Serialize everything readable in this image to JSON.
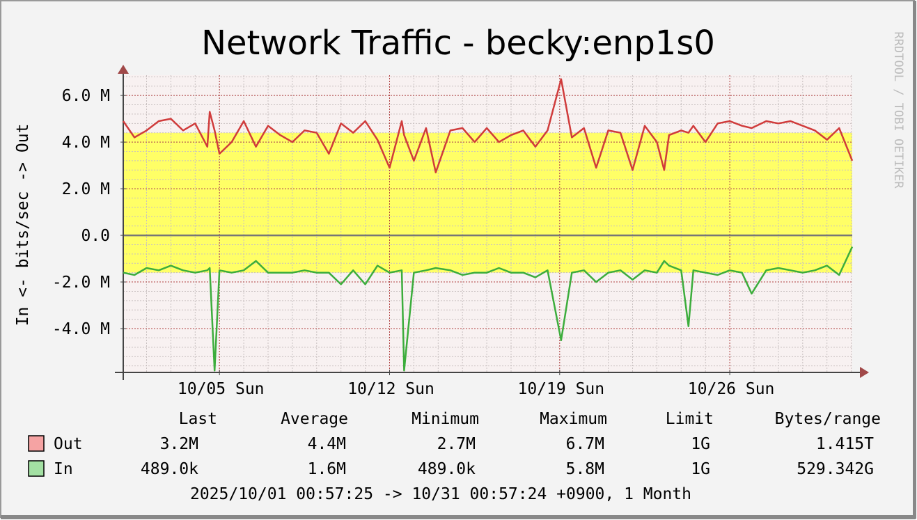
{
  "chart_data": {
    "type": "line",
    "title": "Network Traffic - becky:enp1s0",
    "y_label": "In <- bits/sec -> Out",
    "watermark": "RRDTOOL / TOBI OETIKER",
    "footer": "2025/10/01 00:57:25 -> 10/31 00:57:24 +0900, 1 Month",
    "x": [
      1.04,
      1.5,
      2.0,
      2.5,
      3.0,
      3.5,
      4.0,
      4.5,
      4.6,
      4.8,
      5.0,
      5.5,
      6.0,
      6.5,
      7.0,
      7.5,
      8.0,
      8.5,
      9.0,
      9.5,
      10.0,
      10.5,
      11.0,
      11.5,
      12.0,
      12.5,
      12.6,
      13.0,
      13.5,
      13.9,
      14.5,
      15.0,
      15.5,
      16.0,
      16.5,
      17.0,
      17.5,
      18.0,
      18.5,
      19.06,
      19.5,
      20.0,
      20.5,
      21.0,
      21.5,
      22.0,
      22.5,
      23.0,
      23.3,
      23.5,
      24.0,
      24.3,
      24.5,
      25.0,
      25.5,
      26.0,
      26.5,
      26.9,
      27.5,
      28.0,
      28.5,
      29.0,
      29.5,
      30.0,
      30.5,
      31.04
    ],
    "series": [
      {
        "name": "Out",
        "color": "#d03b3b",
        "legend_color": "#f5a3a3",
        "values": [
          4.9,
          4.2,
          4.5,
          4.9,
          5.0,
          4.5,
          4.8,
          3.8,
          5.3,
          4.5,
          3.5,
          4.0,
          4.9,
          3.8,
          4.7,
          4.3,
          4.0,
          4.5,
          4.4,
          3.5,
          4.8,
          4.4,
          4.9,
          4.1,
          2.9,
          4.9,
          4.3,
          3.2,
          4.6,
          2.7,
          4.5,
          4.6,
          4.0,
          4.6,
          4.0,
          4.3,
          4.5,
          3.8,
          4.5,
          6.7,
          4.2,
          4.6,
          2.9,
          4.5,
          4.4,
          2.8,
          4.7,
          4.0,
          2.8,
          4.3,
          4.5,
          4.4,
          4.7,
          4.0,
          4.8,
          4.9,
          4.7,
          4.6,
          4.9,
          4.8,
          4.9,
          4.7,
          4.5,
          4.1,
          4.6,
          3.2
        ]
      },
      {
        "name": "In",
        "color": "#3cad3c",
        "legend_color": "#a3e0a3",
        "values": [
          -1.6,
          -1.7,
          -1.4,
          -1.5,
          -1.3,
          -1.5,
          -1.6,
          -1.5,
          -1.4,
          -5.8,
          -1.5,
          -1.6,
          -1.5,
          -1.1,
          -1.6,
          -1.6,
          -1.6,
          -1.5,
          -1.6,
          -1.6,
          -2.1,
          -1.5,
          -2.1,
          -1.3,
          -1.6,
          -1.5,
          -5.8,
          -1.6,
          -1.5,
          -1.4,
          -1.5,
          -1.7,
          -1.6,
          -1.6,
          -1.4,
          -1.6,
          -1.6,
          -1.8,
          -1.5,
          -4.5,
          -1.6,
          -1.5,
          -2.0,
          -1.6,
          -1.5,
          -1.9,
          -1.5,
          -1.6,
          -1.1,
          -1.3,
          -1.5,
          -3.9,
          -1.5,
          -1.6,
          -1.7,
          -1.5,
          -1.6,
          -2.5,
          -1.5,
          -1.4,
          -1.5,
          -1.6,
          -1.5,
          -1.3,
          -1.7,
          -0.49
        ]
      }
    ],
    "band": {
      "range": [
        -1.6,
        4.4
      ],
      "color": "#ffff66"
    },
    "xlim": [
      1.04,
      31.04
    ],
    "xticks": [
      {
        "value": 5,
        "label": "10/05 Sun"
      },
      {
        "value": 12,
        "label": "10/12 Sun"
      },
      {
        "value": 19,
        "label": "10/19 Sun"
      },
      {
        "value": 26,
        "label": "10/26 Sun"
      }
    ],
    "ylim": [
      -5.88,
      6.87
    ],
    "yticks": [
      {
        "value": -4,
        "label": "-4.0 M"
      },
      {
        "value": -2,
        "label": "-2.0 M"
      },
      {
        "value": 0,
        "label": "0.0"
      },
      {
        "value": 2,
        "label": "2.0 M"
      },
      {
        "value": 4,
        "label": "4.0 M"
      },
      {
        "value": 6,
        "label": "6.0 M"
      }
    ],
    "minor_grid": {
      "x": 1,
      "y": 0.4
    },
    "grid": true,
    "stats": {
      "columns": [
        "Last",
        "Average",
        "Minimum",
        "Maximum",
        "Limit",
        "Bytes/range"
      ],
      "rows": [
        [
          "3.2M",
          "4.4M",
          "2.7M",
          "6.7M",
          "1G",
          "1.415T"
        ],
        [
          "489.0k",
          "1.6M",
          "489.0k",
          "5.8M",
          "1G",
          "529.342G"
        ]
      ]
    }
  }
}
